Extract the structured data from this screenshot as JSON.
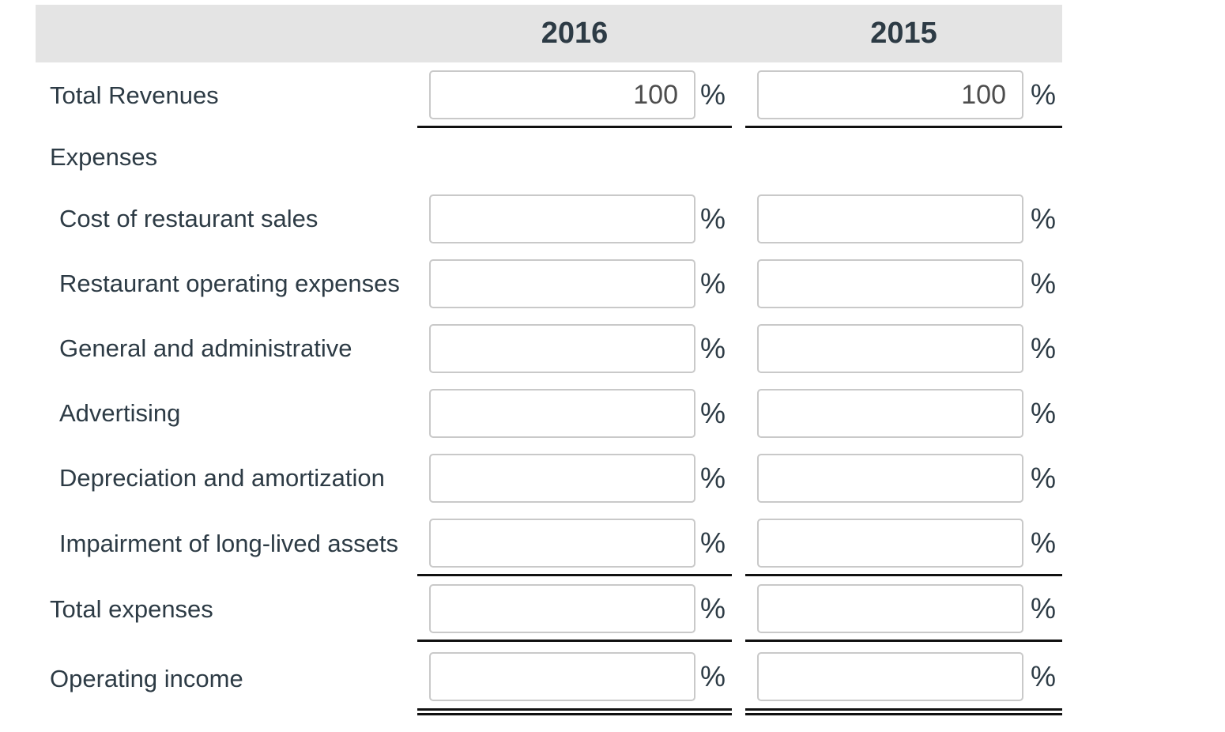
{
  "colors": {
    "ink": "#2d3b45",
    "band": "#e4e4e4",
    "input_border": "#c9c9c9",
    "input_text": "#4d4d4d",
    "rule": "#111111"
  },
  "table": {
    "percent_symbol": "%",
    "columns": [
      {
        "label": "2016"
      },
      {
        "label": "2015"
      }
    ],
    "rows": [
      {
        "label": "Total Revenues",
        "indent": 0,
        "type": "input",
        "values": [
          "100",
          "100"
        ],
        "underline": "single"
      },
      {
        "label": "Expenses",
        "indent": 0,
        "type": "section",
        "underline": "none"
      },
      {
        "label": "Cost of restaurant sales",
        "indent": 1,
        "type": "input",
        "values": [
          "",
          ""
        ],
        "underline": "none"
      },
      {
        "label": "Restaurant operating expenses",
        "indent": 1,
        "type": "input",
        "values": [
          "",
          ""
        ],
        "underline": "none"
      },
      {
        "label": "General and administrative",
        "indent": 1,
        "type": "input",
        "values": [
          "",
          ""
        ],
        "underline": "none"
      },
      {
        "label": "Advertising",
        "indent": 1,
        "type": "input",
        "values": [
          "",
          ""
        ],
        "underline": "none"
      },
      {
        "label": "Depreciation and amortization",
        "indent": 1,
        "type": "input",
        "values": [
          "",
          ""
        ],
        "underline": "none"
      },
      {
        "label": "Impairment of long-lived assets",
        "indent": 1,
        "type": "input",
        "values": [
          "",
          ""
        ],
        "underline": "single"
      },
      {
        "label": "Total expenses",
        "indent": 0,
        "type": "input",
        "values": [
          "",
          ""
        ],
        "underline": "single"
      },
      {
        "label": "Operating income",
        "indent": 0,
        "type": "input",
        "values": [
          "",
          ""
        ],
        "underline": "double"
      }
    ]
  }
}
